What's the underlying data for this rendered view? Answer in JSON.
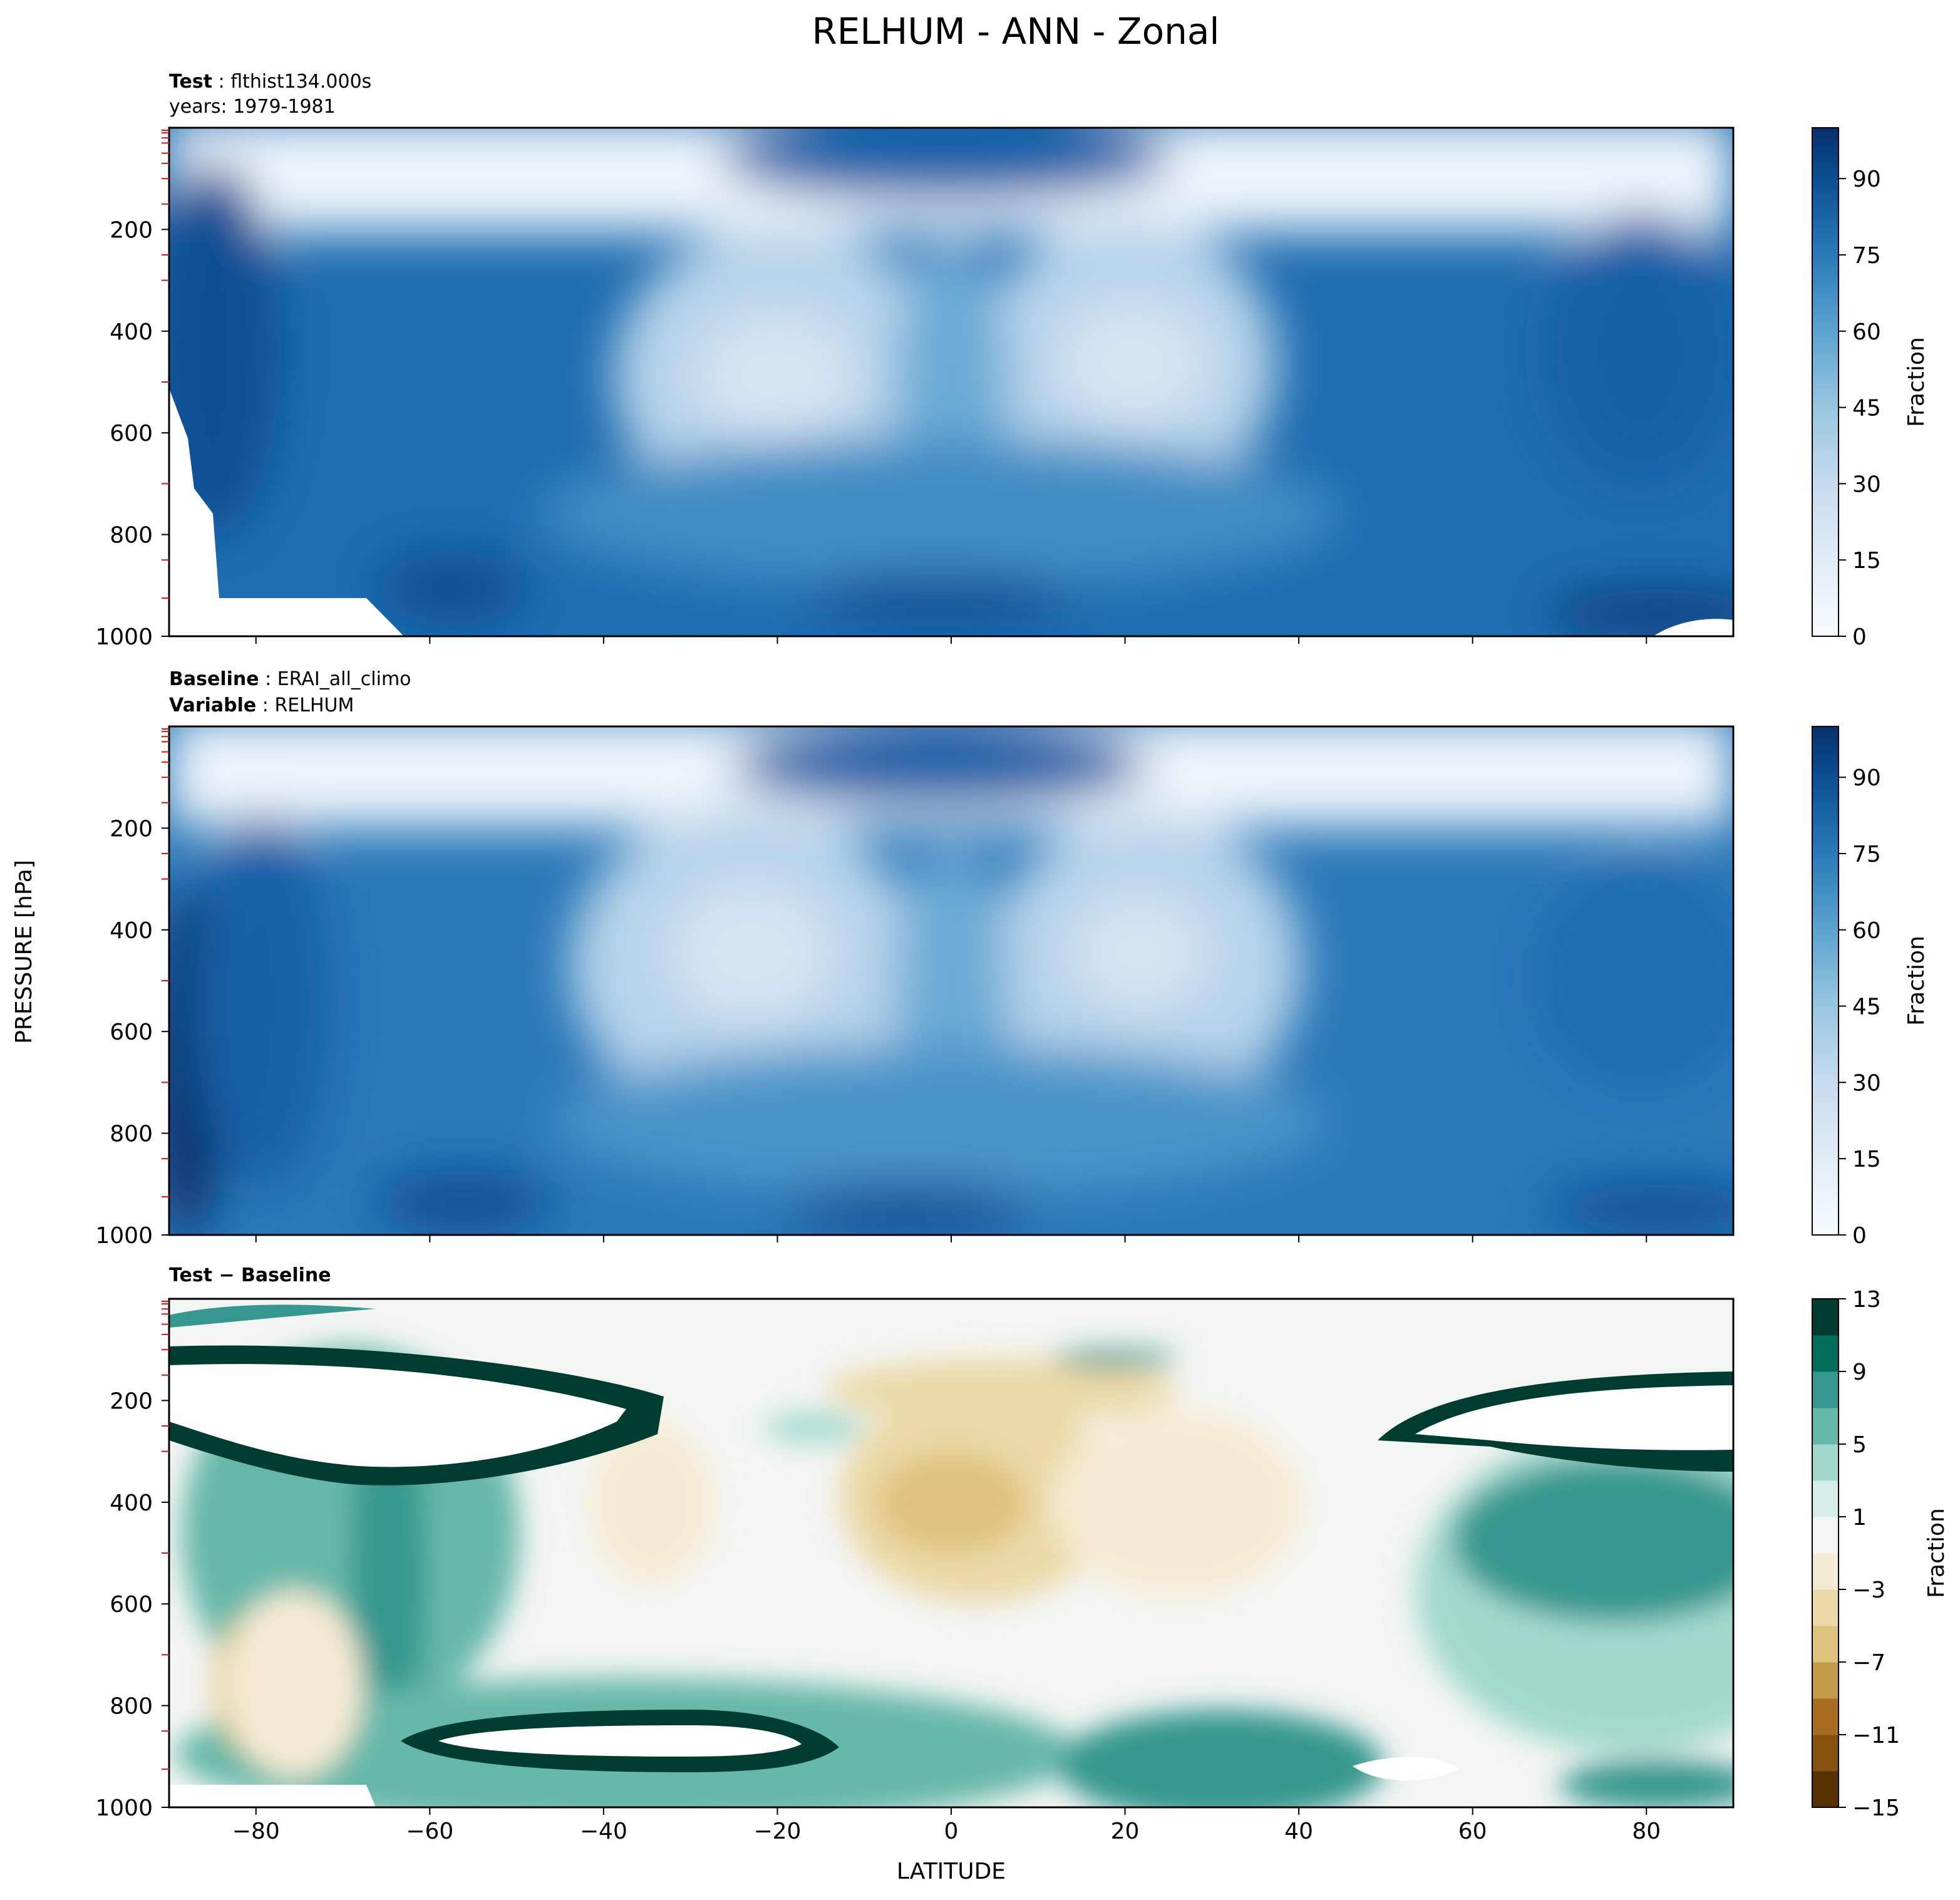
{
  "chart_data": {
    "type": "heatmap",
    "title": "RELHUM - ANN - Zonal",
    "ylabel": "PRESSURE [hPa]",
    "xlabel": "LATITUDE",
    "x_ticks": [
      -80,
      -60,
      -40,
      -20,
      0,
      20,
      40,
      60,
      80
    ],
    "xlim": [
      -90,
      90
    ],
    "y_ticks": [
      200,
      400,
      600,
      800,
      1000
    ],
    "ylim": [
      1000,
      0
    ],
    "panels": [
      {
        "id": "test",
        "header_line1_bold": "Test",
        "header_line1_text": "flthist134.000s",
        "header_line2_text": "years: 1979-1981",
        "colorbar_label": "Fraction",
        "colorbar_ticks": [
          0,
          15,
          30,
          45,
          60,
          75,
          90
        ],
        "colorbar_range": [
          0,
          100
        ],
        "palette": [
          "#f7fbff",
          "#e7f0fa",
          "#d8e7f5",
          "#c6dbef",
          "#b0d2e8",
          "#98c6e0",
          "#80b9da",
          "#68acd5",
          "#529dcc",
          "#3f8dc4",
          "#2e7ebc",
          "#1f6db1",
          "#1461a8",
          "#0b4f94",
          "#08407f",
          "#08306b"
        ]
      },
      {
        "id": "baseline",
        "header_line1_bold": "Baseline",
        "header_line1_text": "ERAI_all_climo",
        "header_line2_bold": "Variable",
        "header_line2_text": "RELHUM",
        "colorbar_label": "Fraction",
        "colorbar_ticks": [
          0,
          15,
          30,
          45,
          60,
          75,
          90
        ],
        "colorbar_range": [
          0,
          100
        ],
        "palette": [
          "#f7fbff",
          "#e7f0fa",
          "#d8e7f5",
          "#c6dbef",
          "#b0d2e8",
          "#98c6e0",
          "#80b9da",
          "#68acd5",
          "#529dcc",
          "#3f8dc4",
          "#2e7ebc",
          "#1f6db1",
          "#1461a8",
          "#0b4f94",
          "#08407f",
          "#08306b"
        ]
      },
      {
        "id": "diff",
        "header_line1_bold": "Test − Baseline",
        "colorbar_label": "Fraction",
        "colorbar_ticks": [
          13,
          9,
          5,
          1,
          -3,
          -7,
          -11,
          -15
        ],
        "colorbar_range": [
          -15,
          13
        ],
        "palette": [
          "#583101",
          "#86510f",
          "#a86c22",
          "#c49a4a",
          "#dfc27d",
          "#ebd9a8",
          "#f5ebd3",
          "#f3f5f3",
          "#d4ede8",
          "#a3d9cd",
          "#66b8a9",
          "#35978f",
          "#016c59",
          "#003c30"
        ]
      }
    ]
  }
}
